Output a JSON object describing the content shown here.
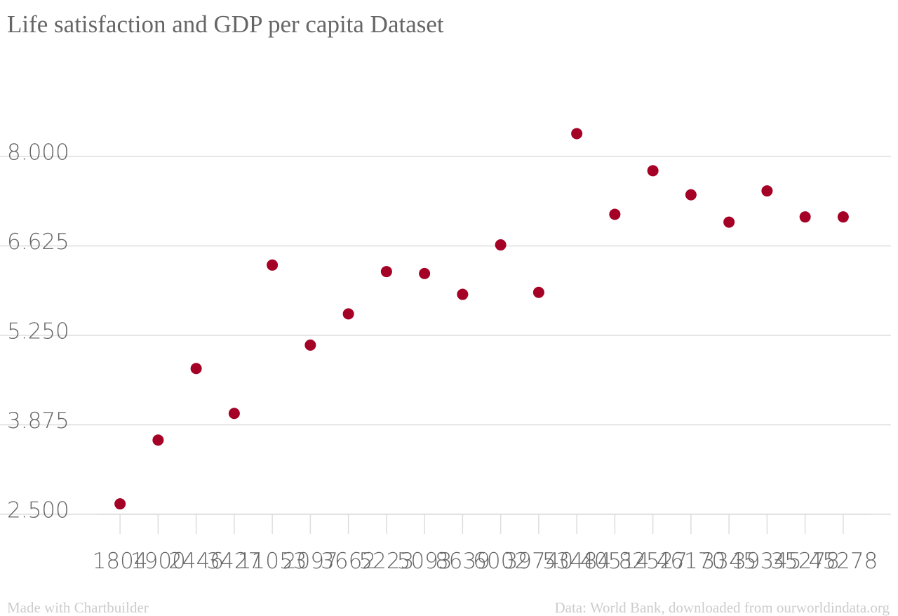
{
  "chart_data": {
    "type": "scatter",
    "title": "Life satisfaction and GDP per capita Dataset",
    "categories": [
      "1804",
      "1900",
      "2446",
      "3427",
      "11053",
      "2097",
      "3662",
      "5223",
      "5093",
      "8639",
      "6002",
      "39740",
      "53484",
      "40514",
      "82527",
      "46170",
      "3345",
      "39345",
      "35278",
      "45278"
    ],
    "values": [
      2.66,
      3.64,
      4.74,
      4.05,
      6.33,
      5.1,
      5.58,
      6.23,
      6.2,
      5.88,
      6.64,
      5.91,
      8.35,
      7.11,
      7.78,
      7.41,
      6.99,
      7.47,
      7.07,
      7.07
    ],
    "color": "#a50026",
    "ylim": [
      2.5,
      8.7
    ],
    "yticks": [
      {
        "value": 2.5,
        "label": "2.500"
      },
      {
        "value": 3.875,
        "label": "3.875"
      },
      {
        "value": 5.25,
        "label": "5.250"
      },
      {
        "value": 6.625,
        "label": "6.625"
      },
      {
        "value": 8,
        "label": "8.000"
      }
    ],
    "grid": true,
    "footer_left": "Made with Chartbuilder",
    "footer_right": "Data: World Bank, downloaded from ourworldindata.org"
  }
}
